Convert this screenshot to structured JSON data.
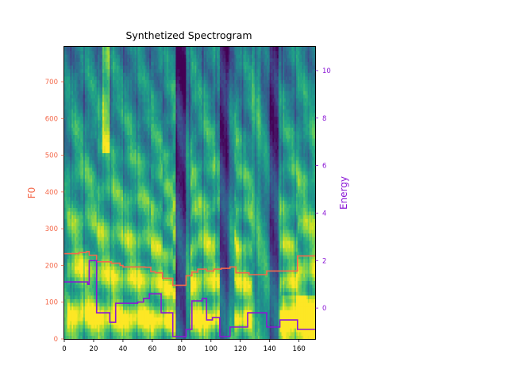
{
  "chart_data": {
    "type": "heatmap",
    "title": "Synthetized Spectrogram",
    "colormap": "viridis",
    "colors": {
      "f0_line": "#f4694b",
      "energy_line": "#8b17d6",
      "f0_axis": "#f4694b",
      "energy_axis": "#8b17d6"
    },
    "xlabel": "",
    "xlim": [
      0,
      171
    ],
    "x_ticks": [
      0,
      20,
      40,
      60,
      80,
      100,
      120,
      140,
      160
    ],
    "y_left": {
      "label": "F0",
      "lim": [
        0,
        795
      ],
      "ticks": [
        0,
        100,
        200,
        300,
        400,
        500,
        600,
        700
      ]
    },
    "y_right": {
      "label": "Energy",
      "lim": [
        -1.3,
        11.0
      ],
      "ticks": [
        0,
        2,
        4,
        6,
        8,
        10
      ]
    },
    "series": [
      {
        "name": "F0",
        "axis": "left",
        "step": true,
        "x": [
          0,
          10,
          15,
          17,
          22,
          32,
          38,
          40,
          55,
          59,
          62,
          67,
          74,
          83,
          87,
          91,
          97,
          102,
          107,
          113,
          117,
          126,
          138,
          159,
          171
        ],
        "y": [
          232,
          235,
          238,
          228,
          210,
          206,
          200,
          196,
          195,
          183,
          180,
          165,
          146,
          172,
          182,
          190,
          185,
          190,
          192,
          196,
          180,
          175,
          185,
          226,
          226
        ]
      },
      {
        "name": "Energy",
        "axis": "right",
        "step": true,
        "x": [
          0,
          16,
          17,
          22,
          31,
          35,
          50,
          54,
          58,
          66,
          74,
          83,
          87,
          94,
          97,
          101,
          106,
          113,
          125,
          138,
          147,
          159,
          171
        ],
        "y": [
          1.1,
          1.0,
          2.0,
          -0.2,
          -0.6,
          0.2,
          0.25,
          0.4,
          0.6,
          -0.2,
          -1.2,
          -0.9,
          0.3,
          0.4,
          -0.5,
          -0.4,
          -1.2,
          -0.8,
          -0.2,
          -0.8,
          -0.5,
          -0.9,
          -0.9
        ]
      }
    ],
    "heatmap_features": {
      "frames": 171,
      "bins": 80,
      "voiced_segments": [
        [
          2,
          76
        ],
        [
          86,
          106
        ],
        [
          116,
          128
        ],
        [
          147,
          171
        ]
      ],
      "silence_bands": [
        [
          76,
          83
        ],
        [
          106,
          112
        ],
        [
          140,
          146
        ]
      ]
    }
  }
}
